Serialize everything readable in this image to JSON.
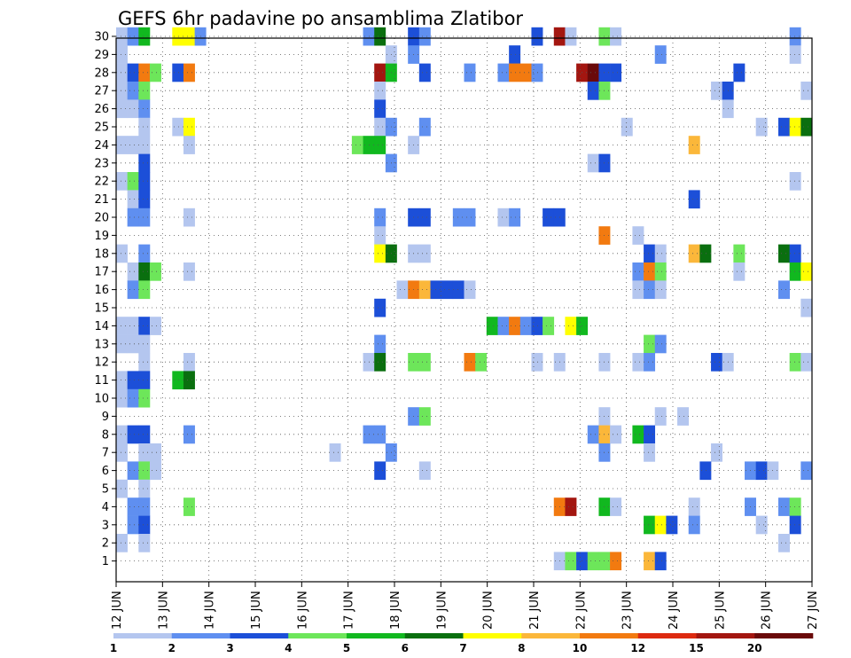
{
  "chart_data": {
    "type": "heatmap",
    "title": "GEFS 6hr padavine po ansamblima Zlatibor",
    "xlabel": "",
    "ylabel": "",
    "x_tick_labels": [
      "12 JUN",
      "13 JUN",
      "14 JUN",
      "15 JUN",
      "16 JUN",
      "17 JUN",
      "18 JUN",
      "19 JUN",
      "20 JUN",
      "21 JUN",
      "22 JUN",
      "23 JUN",
      "24 JUN",
      "25 JUN",
      "26 JUN",
      "27 JUN"
    ],
    "y_tick_labels": [
      "1",
      "2",
      "3",
      "4",
      "5",
      "6",
      "7",
      "8",
      "9",
      "10",
      "11",
      "12",
      "13",
      "14",
      "15",
      "16",
      "17",
      "18",
      "19",
      "20",
      "21",
      "22",
      "23",
      "24",
      "25",
      "26",
      "27",
      "28",
      "29",
      "30"
    ],
    "xlim_steps": [
      0,
      61
    ],
    "ylim": [
      0,
      30
    ],
    "grid": true,
    "legend": {
      "position": "bottom",
      "labels": [
        "1",
        "2",
        "3",
        "4",
        "5",
        "6",
        "7",
        "8",
        "10",
        "12",
        "15",
        "20"
      ],
      "colors": [
        "#b4c6ef",
        "#5f8ff0",
        "#1c4fd8",
        "#6de65a",
        "#11b81f",
        "#0a6f0f",
        "#ffff00",
        "#fbb73a",
        "#f27a10",
        "#dd2a10",
        "#a31610",
        "#6a0a0a"
      ]
    },
    "cells": [
      {
        "y": 30,
        "x": 0,
        "c": 1
      },
      {
        "y": 30,
        "x": 1,
        "c": 2
      },
      {
        "y": 30,
        "x": 2,
        "c": 5
      },
      {
        "y": 30,
        "x": 5,
        "c": 7
      },
      {
        "y": 30,
        "x": 6,
        "c": 7
      },
      {
        "y": 30,
        "x": 7,
        "c": 2
      },
      {
        "y": 30,
        "x": 22,
        "c": 2
      },
      {
        "y": 30,
        "x": 23,
        "c": 6
      },
      {
        "y": 30,
        "x": 26,
        "c": 3
      },
      {
        "y": 30,
        "x": 27,
        "c": 2
      },
      {
        "y": 30,
        "x": 37,
        "c": 3
      },
      {
        "y": 30,
        "x": 39,
        "c": 11
      },
      {
        "y": 30,
        "x": 40,
        "c": 1
      },
      {
        "y": 30,
        "x": 43,
        "c": 4
      },
      {
        "y": 30,
        "x": 44,
        "c": 1
      },
      {
        "y": 30,
        "x": 60,
        "c": 2
      },
      {
        "y": 29,
        "x": 0,
        "c": 1
      },
      {
        "y": 29,
        "x": 24,
        "c": 1
      },
      {
        "y": 29,
        "x": 26,
        "c": 2
      },
      {
        "y": 29,
        "x": 35,
        "c": 3
      },
      {
        "y": 29,
        "x": 48,
        "c": 2
      },
      {
        "y": 29,
        "x": 60,
        "c": 1
      },
      {
        "y": 28,
        "x": 0,
        "c": 1
      },
      {
        "y": 28,
        "x": 1,
        "c": 3
      },
      {
        "y": 28,
        "x": 2,
        "c": 9
      },
      {
        "y": 28,
        "x": 3,
        "c": 4
      },
      {
        "y": 28,
        "x": 5,
        "c": 3
      },
      {
        "y": 28,
        "x": 6,
        "c": 9
      },
      {
        "y": 28,
        "x": 23,
        "c": 11
      },
      {
        "y": 28,
        "x": 24,
        "c": 5
      },
      {
        "y": 28,
        "x": 27,
        "c": 3
      },
      {
        "y": 28,
        "x": 31,
        "c": 2
      },
      {
        "y": 28,
        "x": 34,
        "c": 2
      },
      {
        "y": 28,
        "x": 35,
        "c": 9
      },
      {
        "y": 28,
        "x": 36,
        "c": 9
      },
      {
        "y": 28,
        "x": 37,
        "c": 2
      },
      {
        "y": 28,
        "x": 41,
        "c": 11
      },
      {
        "y": 28,
        "x": 42,
        "c": 12
      },
      {
        "y": 28,
        "x": 43,
        "c": 3
      },
      {
        "y": 28,
        "x": 44,
        "c": 3
      },
      {
        "y": 28,
        "x": 55,
        "c": 3
      },
      {
        "y": 27,
        "x": 0,
        "c": 1
      },
      {
        "y": 27,
        "x": 1,
        "c": 2
      },
      {
        "y": 27,
        "x": 2,
        "c": 4
      },
      {
        "y": 27,
        "x": 23,
        "c": 1
      },
      {
        "y": 27,
        "x": 42,
        "c": 3
      },
      {
        "y": 27,
        "x": 43,
        "c": 4
      },
      {
        "y": 27,
        "x": 53,
        "c": 1
      },
      {
        "y": 27,
        "x": 54,
        "c": 3
      },
      {
        "y": 27,
        "x": 61,
        "c": 1
      },
      {
        "y": 26,
        "x": 0,
        "c": 1
      },
      {
        "y": 26,
        "x": 1,
        "c": 1
      },
      {
        "y": 26,
        "x": 2,
        "c": 2
      },
      {
        "y": 26,
        "x": 23,
        "c": 3
      },
      {
        "y": 26,
        "x": 54,
        "c": 1
      },
      {
        "y": 25,
        "x": 2,
        "c": 1
      },
      {
        "y": 25,
        "x": 5,
        "c": 1
      },
      {
        "y": 25,
        "x": 6,
        "c": 7
      },
      {
        "y": 25,
        "x": 23,
        "c": 1
      },
      {
        "y": 25,
        "x": 24,
        "c": 2
      },
      {
        "y": 25,
        "x": 27,
        "c": 2
      },
      {
        "y": 25,
        "x": 45,
        "c": 1
      },
      {
        "y": 25,
        "x": 57,
        "c": 1
      },
      {
        "y": 25,
        "x": 59,
        "c": 3
      },
      {
        "y": 25,
        "x": 60,
        "c": 7
      },
      {
        "y": 25,
        "x": 61,
        "c": 6
      },
      {
        "y": 24,
        "x": 0,
        "c": 1
      },
      {
        "y": 24,
        "x": 1,
        "c": 1
      },
      {
        "y": 24,
        "x": 2,
        "c": 1
      },
      {
        "y": 24,
        "x": 6,
        "c": 1
      },
      {
        "y": 24,
        "x": 21,
        "c": 4
      },
      {
        "y": 24,
        "x": 22,
        "c": 5
      },
      {
        "y": 24,
        "x": 23,
        "c": 5
      },
      {
        "y": 24,
        "x": 26,
        "c": 1
      },
      {
        "y": 24,
        "x": 51,
        "c": 8
      },
      {
        "y": 23,
        "x": 2,
        "c": 3
      },
      {
        "y": 23,
        "x": 24,
        "c": 2
      },
      {
        "y": 23,
        "x": 42,
        "c": 1
      },
      {
        "y": 23,
        "x": 43,
        "c": 3
      },
      {
        "y": 22,
        "x": 0,
        "c": 1
      },
      {
        "y": 22,
        "x": 1,
        "c": 4
      },
      {
        "y": 22,
        "x": 2,
        "c": 3
      },
      {
        "y": 22,
        "x": 60,
        "c": 1
      },
      {
        "y": 21,
        "x": 1,
        "c": 1
      },
      {
        "y": 21,
        "x": 2,
        "c": 3
      },
      {
        "y": 21,
        "x": 51,
        "c": 3
      },
      {
        "y": 20,
        "x": 1,
        "c": 2
      },
      {
        "y": 20,
        "x": 2,
        "c": 2
      },
      {
        "y": 20,
        "x": 6,
        "c": 1
      },
      {
        "y": 20,
        "x": 23,
        "c": 2
      },
      {
        "y": 20,
        "x": 26,
        "c": 3
      },
      {
        "y": 20,
        "x": 27,
        "c": 3
      },
      {
        "y": 20,
        "x": 30,
        "c": 2
      },
      {
        "y": 20,
        "x": 31,
        "c": 2
      },
      {
        "y": 20,
        "x": 34,
        "c": 1
      },
      {
        "y": 20,
        "x": 35,
        "c": 2
      },
      {
        "y": 20,
        "x": 38,
        "c": 3
      },
      {
        "y": 20,
        "x": 39,
        "c": 3
      },
      {
        "y": 19,
        "x": 23,
        "c": 1
      },
      {
        "y": 19,
        "x": 43,
        "c": 9
      },
      {
        "y": 19,
        "x": 46,
        "c": 1
      },
      {
        "y": 18,
        "x": 0,
        "c": 1
      },
      {
        "y": 18,
        "x": 2,
        "c": 2
      },
      {
        "y": 18,
        "x": 23,
        "c": 7
      },
      {
        "y": 18,
        "x": 24,
        "c": 6
      },
      {
        "y": 18,
        "x": 26,
        "c": 1
      },
      {
        "y": 18,
        "x": 27,
        "c": 1
      },
      {
        "y": 18,
        "x": 47,
        "c": 3
      },
      {
        "y": 18,
        "x": 48,
        "c": 1
      },
      {
        "y": 18,
        "x": 51,
        "c": 8
      },
      {
        "y": 18,
        "x": 52,
        "c": 6
      },
      {
        "y": 18,
        "x": 55,
        "c": 4
      },
      {
        "y": 18,
        "x": 59,
        "c": 6
      },
      {
        "y": 18,
        "x": 60,
        "c": 3
      },
      {
        "y": 17,
        "x": 1,
        "c": 1
      },
      {
        "y": 17,
        "x": 2,
        "c": 6
      },
      {
        "y": 17,
        "x": 3,
        "c": 4
      },
      {
        "y": 17,
        "x": 6,
        "c": 1
      },
      {
        "y": 17,
        "x": 46,
        "c": 2
      },
      {
        "y": 17,
        "x": 47,
        "c": 9
      },
      {
        "y": 17,
        "x": 48,
        "c": 4
      },
      {
        "y": 17,
        "x": 55,
        "c": 1
      },
      {
        "y": 17,
        "x": 60,
        "c": 5
      },
      {
        "y": 17,
        "x": 61,
        "c": 7
      },
      {
        "y": 16,
        "x": 1,
        "c": 2
      },
      {
        "y": 16,
        "x": 2,
        "c": 4
      },
      {
        "y": 16,
        "x": 25,
        "c": 1
      },
      {
        "y": 16,
        "x": 26,
        "c": 9
      },
      {
        "y": 16,
        "x": 27,
        "c": 8
      },
      {
        "y": 16,
        "x": 28,
        "c": 3
      },
      {
        "y": 16,
        "x": 29,
        "c": 3
      },
      {
        "y": 16,
        "x": 30,
        "c": 3
      },
      {
        "y": 16,
        "x": 31,
        "c": 1
      },
      {
        "y": 16,
        "x": 46,
        "c": 1
      },
      {
        "y": 16,
        "x": 47,
        "c": 2
      },
      {
        "y": 16,
        "x": 48,
        "c": 1
      },
      {
        "y": 16,
        "x": 59,
        "c": 2
      },
      {
        "y": 15,
        "x": 23,
        "c": 3
      },
      {
        "y": 15,
        "x": 61,
        "c": 1
      },
      {
        "y": 14,
        "x": 0,
        "c": 1
      },
      {
        "y": 14,
        "x": 1,
        "c": 1
      },
      {
        "y": 14,
        "x": 2,
        "c": 3
      },
      {
        "y": 14,
        "x": 3,
        "c": 1
      },
      {
        "y": 14,
        "x": 33,
        "c": 5
      },
      {
        "y": 14,
        "x": 34,
        "c": 2
      },
      {
        "y": 14,
        "x": 35,
        "c": 9
      },
      {
        "y": 14,
        "x": 36,
        "c": 2
      },
      {
        "y": 14,
        "x": 37,
        "c": 3
      },
      {
        "y": 14,
        "x": 38,
        "c": 4
      },
      {
        "y": 14,
        "x": 40,
        "c": 7
      },
      {
        "y": 14,
        "x": 41,
        "c": 5
      },
      {
        "y": 13,
        "x": 0,
        "c": 1
      },
      {
        "y": 13,
        "x": 1,
        "c": 1
      },
      {
        "y": 13,
        "x": 2,
        "c": 1
      },
      {
        "y": 13,
        "x": 23,
        "c": 2
      },
      {
        "y": 13,
        "x": 47,
        "c": 4
      },
      {
        "y": 13,
        "x": 48,
        "c": 2
      },
      {
        "y": 12,
        "x": 2,
        "c": 1
      },
      {
        "y": 12,
        "x": 6,
        "c": 1
      },
      {
        "y": 12,
        "x": 22,
        "c": 1
      },
      {
        "y": 12,
        "x": 23,
        "c": 6
      },
      {
        "y": 12,
        "x": 26,
        "c": 4
      },
      {
        "y": 12,
        "x": 27,
        "c": 4
      },
      {
        "y": 12,
        "x": 31,
        "c": 9
      },
      {
        "y": 12,
        "x": 32,
        "c": 4
      },
      {
        "y": 12,
        "x": 37,
        "c": 1
      },
      {
        "y": 12,
        "x": 39,
        "c": 1
      },
      {
        "y": 12,
        "x": 43,
        "c": 1
      },
      {
        "y": 12,
        "x": 46,
        "c": 1
      },
      {
        "y": 12,
        "x": 47,
        "c": 2
      },
      {
        "y": 12,
        "x": 53,
        "c": 3
      },
      {
        "y": 12,
        "x": 54,
        "c": 1
      },
      {
        "y": 12,
        "x": 60,
        "c": 4
      },
      {
        "y": 12,
        "x": 61,
        "c": 1
      },
      {
        "y": 11,
        "x": 0,
        "c": 1
      },
      {
        "y": 11,
        "x": 1,
        "c": 3
      },
      {
        "y": 11,
        "x": 2,
        "c": 3
      },
      {
        "y": 11,
        "x": 5,
        "c": 5
      },
      {
        "y": 11,
        "x": 6,
        "c": 6
      },
      {
        "y": 10,
        "x": 0,
        "c": 1
      },
      {
        "y": 10,
        "x": 1,
        "c": 2
      },
      {
        "y": 10,
        "x": 2,
        "c": 4
      },
      {
        "y": 9,
        "x": 26,
        "c": 2
      },
      {
        "y": 9,
        "x": 27,
        "c": 4
      },
      {
        "y": 9,
        "x": 43,
        "c": 1
      },
      {
        "y": 9,
        "x": 48,
        "c": 1
      },
      {
        "y": 9,
        "x": 50,
        "c": 1
      },
      {
        "y": 8,
        "x": 0,
        "c": 1
      },
      {
        "y": 8,
        "x": 1,
        "c": 3
      },
      {
        "y": 8,
        "x": 2,
        "c": 3
      },
      {
        "y": 8,
        "x": 6,
        "c": 2
      },
      {
        "y": 8,
        "x": 22,
        "c": 2
      },
      {
        "y": 8,
        "x": 23,
        "c": 2
      },
      {
        "y": 8,
        "x": 42,
        "c": 2
      },
      {
        "y": 8,
        "x": 43,
        "c": 8
      },
      {
        "y": 8,
        "x": 44,
        "c": 1
      },
      {
        "y": 8,
        "x": 46,
        "c": 5
      },
      {
        "y": 8,
        "x": 47,
        "c": 3
      },
      {
        "y": 7,
        "x": 0,
        "c": 1
      },
      {
        "y": 7,
        "x": 2,
        "c": 1
      },
      {
        "y": 7,
        "x": 3,
        "c": 1
      },
      {
        "y": 7,
        "x": 19,
        "c": 1
      },
      {
        "y": 7,
        "x": 24,
        "c": 2
      },
      {
        "y": 7,
        "x": 43,
        "c": 2
      },
      {
        "y": 7,
        "x": 47,
        "c": 1
      },
      {
        "y": 7,
        "x": 53,
        "c": 1
      },
      {
        "y": 6,
        "x": 1,
        "c": 2
      },
      {
        "y": 6,
        "x": 2,
        "c": 4
      },
      {
        "y": 6,
        "x": 3,
        "c": 1
      },
      {
        "y": 6,
        "x": 23,
        "c": 3
      },
      {
        "y": 6,
        "x": 27,
        "c": 1
      },
      {
        "y": 6,
        "x": 52,
        "c": 3
      },
      {
        "y": 6,
        "x": 56,
        "c": 2
      },
      {
        "y": 6,
        "x": 57,
        "c": 3
      },
      {
        "y": 6,
        "x": 58,
        "c": 1
      },
      {
        "y": 6,
        "x": 61,
        "c": 2
      },
      {
        "y": 5,
        "x": 0,
        "c": 1
      },
      {
        "y": 5,
        "x": 2,
        "c": 1
      },
      {
        "y": 4,
        "x": 1,
        "c": 2
      },
      {
        "y": 4,
        "x": 2,
        "c": 2
      },
      {
        "y": 4,
        "x": 6,
        "c": 4
      },
      {
        "y": 4,
        "x": 39,
        "c": 9
      },
      {
        "y": 4,
        "x": 40,
        "c": 11
      },
      {
        "y": 4,
        "x": 43,
        "c": 5
      },
      {
        "y": 4,
        "x": 44,
        "c": 1
      },
      {
        "y": 4,
        "x": 51,
        "c": 1
      },
      {
        "y": 4,
        "x": 56,
        "c": 2
      },
      {
        "y": 4,
        "x": 59,
        "c": 2
      },
      {
        "y": 4,
        "x": 60,
        "c": 4
      },
      {
        "y": 3,
        "x": 1,
        "c": 2
      },
      {
        "y": 3,
        "x": 2,
        "c": 3
      },
      {
        "y": 3,
        "x": 47,
        "c": 5
      },
      {
        "y": 3,
        "x": 48,
        "c": 7
      },
      {
        "y": 3,
        "x": 49,
        "c": 3
      },
      {
        "y": 3,
        "x": 51,
        "c": 2
      },
      {
        "y": 3,
        "x": 57,
        "c": 1
      },
      {
        "y": 3,
        "x": 60,
        "c": 3
      },
      {
        "y": 2,
        "x": 0,
        "c": 1
      },
      {
        "y": 2,
        "x": 2,
        "c": 1
      },
      {
        "y": 2,
        "x": 59,
        "c": 1
      },
      {
        "y": 1,
        "x": 39,
        "c": 1
      },
      {
        "y": 1,
        "x": 40,
        "c": 4
      },
      {
        "y": 1,
        "x": 41,
        "c": 3
      },
      {
        "y": 1,
        "x": 42,
        "c": 4
      },
      {
        "y": 1,
        "x": 43,
        "c": 4
      },
      {
        "y": 1,
        "x": 44,
        "c": 9
      },
      {
        "y": 1,
        "x": 47,
        "c": 8
      },
      {
        "y": 1,
        "x": 48,
        "c": 3
      }
    ]
  }
}
